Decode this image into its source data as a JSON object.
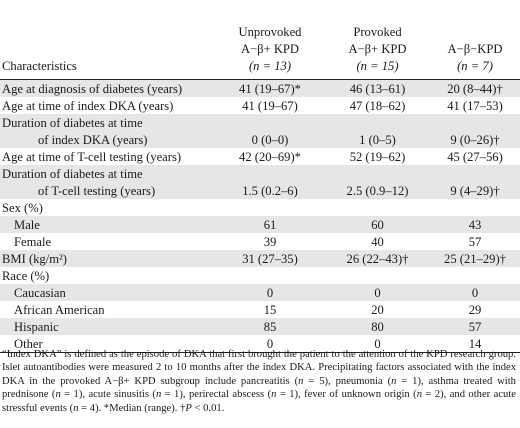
{
  "table": {
    "header": {
      "characteristics": "Characteristics",
      "col1": [
        "Unprovoked",
        "A−β+ KPD",
        "(n = 13)"
      ],
      "col2": [
        "Provoked",
        "A−β+ KPD",
        "(n = 15)"
      ],
      "col3": [
        "A−β−KPD",
        "(n = 7)"
      ]
    },
    "rows": [
      {
        "label": "Age at diagnosis of diabetes (years)",
        "v": [
          "41 (19–67)*",
          "46 (13–61)",
          "20 (8–44)†"
        ]
      },
      {
        "label": "Age at time of index DKA (years)",
        "v": [
          "41 (19–67)",
          "47 (18–62)",
          "41 (17–53)"
        ]
      },
      {
        "label": "Duration of diabetes at time",
        "label2": "of index DKA (years)",
        "v": [
          "0 (0–0)",
          "1 (0–5)",
          "9 (0–26)†"
        ]
      },
      {
        "label": "Age at time of T-cell testing (years)",
        "v": [
          "42 (20–69)*",
          "52 (19–62)",
          "45 (27–56)"
        ]
      },
      {
        "label": "Duration of diabetes at time",
        "label2": "of T-cell testing (years)",
        "v": [
          "1.5 (0.2–6)",
          "2.5 (0.9–12)",
          "9 (4–29)†"
        ]
      },
      {
        "label": "Sex (%)"
      },
      {
        "label": "Male",
        "v": [
          "61",
          "60",
          "43"
        ]
      },
      {
        "label": "Female",
        "v": [
          "39",
          "40",
          "57"
        ]
      },
      {
        "label": "BMI (kg/m²)",
        "v": [
          "31 (27–35)",
          "26 (22–43)†",
          "25 (21–29)†"
        ]
      },
      {
        "label": "Race (%)"
      },
      {
        "label": "Caucasian",
        "v": [
          "0",
          "0",
          "0"
        ]
      },
      {
        "label": "African American",
        "v": [
          "15",
          "20",
          "29"
        ]
      },
      {
        "label": "Hispanic",
        "v": [
          "85",
          "80",
          "57"
        ]
      },
      {
        "label": "Other",
        "v": [
          "0",
          "0",
          "14"
        ]
      }
    ]
  },
  "footnote": {
    "p1": "“Index DKA” is defined as the episode of DKA that first brought the patient to the attention of the KPD research group. Islet autoantibodies were measured 2 to 10 months after the index DKA. Precipitating factors associated with the index DKA in the provoked A−β+ KPD subgroup include pancreatitis (",
    "n1": "n",
    "p2": " = 5), pneumonia (",
    "n2": "n",
    "p3": " = 1), asthma treated with prednisone (",
    "n3": "n",
    "p4": " = 1), acute sinusitis (",
    "n4": "n",
    "p5": " = 1), perirectal abscess (",
    "n5": "n",
    "p6": " = 1), fever of unknown origin (",
    "n6": "n",
    "p7": " = 2), and other acute stressful events (",
    "n7": "n",
    "p8": " = 4). *Median (range). †",
    "n8": "P",
    "p9": " < 0.01."
  }
}
